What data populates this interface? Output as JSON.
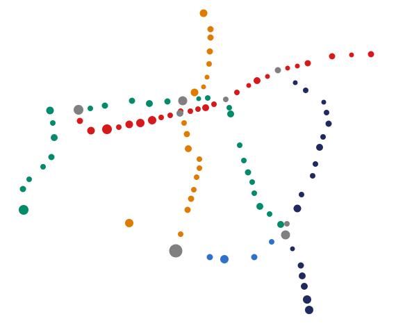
{
  "colors": {
    "red": "#d7191c",
    "orange": "#e07b00",
    "green": "#008c6a",
    "navy": "#1f2a5e",
    "blue": "#2d72c8",
    "gray": "#808080"
  },
  "series": [
    {
      "key": "red-line",
      "color": "red"
    },
    {
      "key": "orange-line",
      "color": "orange"
    },
    {
      "key": "green-line",
      "color": "green"
    },
    {
      "key": "navy-line",
      "color": "navy"
    },
    {
      "key": "blue-line",
      "color": "blue"
    },
    {
      "key": "gray-hubs",
      "color": "gray"
    }
  ]
}
